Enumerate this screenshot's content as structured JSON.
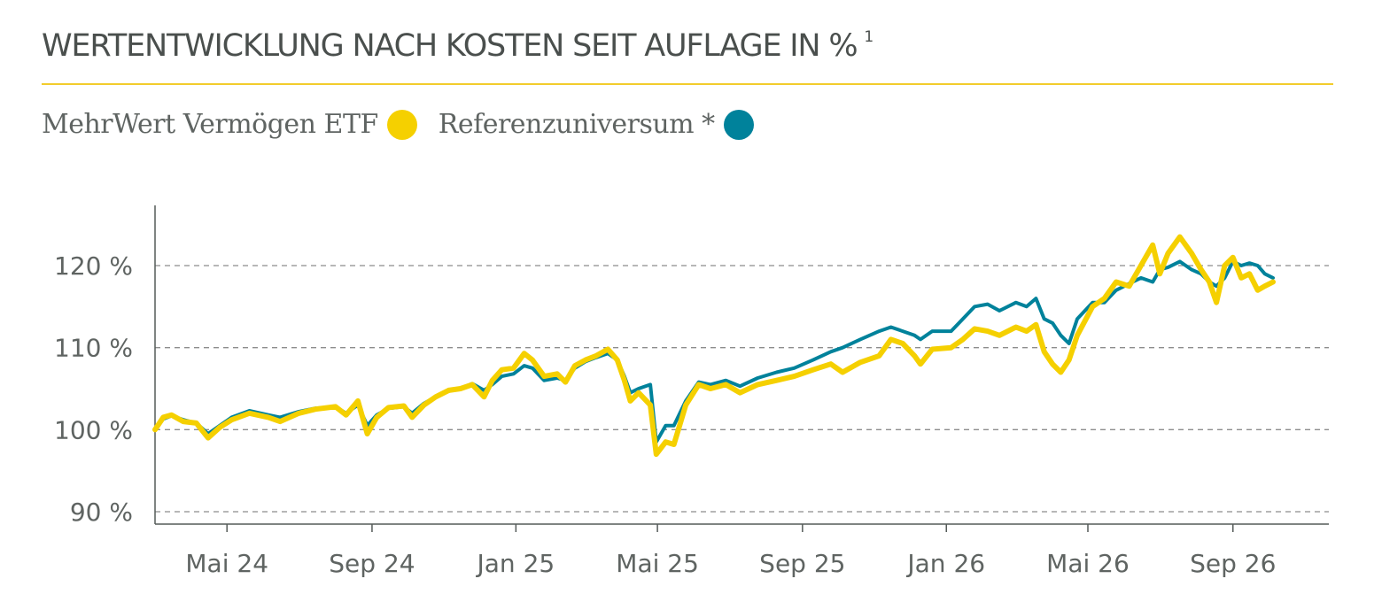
{
  "title": "WERTENTWICKLUNG NACH KOSTEN SEIT AUFLAGE IN %",
  "title_footnote": "1",
  "colors": {
    "etf": "#f5d000",
    "reference": "#00829b",
    "rule": "#f2cc2c",
    "grid": "#8c8c8c",
    "axis": "#555b59",
    "text": "#4a4f4d"
  },
  "legend": [
    {
      "label": "MehrWert Vermögen ETF",
      "color": "#f5d000"
    },
    {
      "label": "Referenzuniversum *",
      "color": "#00829b"
    }
  ],
  "chart_data": {
    "type": "line",
    "title": "WERTENTWICKLUNG NACH KOSTEN SEIT AUFLAGE IN %",
    "xlabel": "",
    "ylabel": "",
    "x_range": [
      "2024-03-01",
      "2026-11-15"
    ],
    "ylim": [
      89,
      128
    ],
    "y_ticks": [
      90,
      100,
      110,
      120
    ],
    "y_tick_labels": [
      "90 %",
      "100 %",
      "110 %",
      "120 %"
    ],
    "x_ticks": [
      "2024-05-01",
      "2024-09-01",
      "2025-01-01",
      "2025-05-01",
      "2025-09-01",
      "2026-01-01",
      "2026-05-01",
      "2026-09-01"
    ],
    "x_tick_labels": [
      "Mai 24",
      "Sep 24",
      "Jan 25",
      "Mai 25",
      "Sep 25",
      "Jan 26",
      "Mai 26",
      "Sep 26"
    ],
    "grid": "horizontal dashed",
    "legend_position": "top-left",
    "series": [
      {
        "name": "MehrWert Vermögen ETF",
        "color": "#f5d000",
        "points": [
          [
            "2024-03-01",
            100.0
          ],
          [
            "2024-03-08",
            101.5
          ],
          [
            "2024-03-15",
            101.8
          ],
          [
            "2024-03-25",
            101.0
          ],
          [
            "2024-04-05",
            100.8
          ],
          [
            "2024-04-15",
            99.0
          ],
          [
            "2024-04-25",
            100.3
          ],
          [
            "2024-05-05",
            101.2
          ],
          [
            "2024-05-20",
            102.0
          ],
          [
            "2024-06-05",
            101.5
          ],
          [
            "2024-06-15",
            101.0
          ],
          [
            "2024-07-01",
            102.0
          ],
          [
            "2024-07-15",
            102.5
          ],
          [
            "2024-08-01",
            102.8
          ],
          [
            "2024-08-10",
            101.8
          ],
          [
            "2024-08-20",
            103.5
          ],
          [
            "2024-08-28",
            99.5
          ],
          [
            "2024-09-05",
            101.5
          ],
          [
            "2024-09-15",
            102.7
          ],
          [
            "2024-09-28",
            102.9
          ],
          [
            "2024-10-05",
            101.5
          ],
          [
            "2024-10-15",
            103.0
          ],
          [
            "2024-10-25",
            104.0
          ],
          [
            "2024-11-05",
            104.8
          ],
          [
            "2024-11-15",
            105.0
          ],
          [
            "2024-11-25",
            105.5
          ],
          [
            "2024-12-05",
            104.0
          ],
          [
            "2024-12-12",
            106.0
          ],
          [
            "2024-12-20",
            107.3
          ],
          [
            "2024-12-30",
            107.5
          ],
          [
            "2025-01-08",
            109.3
          ],
          [
            "2025-01-15",
            108.5
          ],
          [
            "2025-01-25",
            106.5
          ],
          [
            "2025-02-05",
            106.8
          ],
          [
            "2025-02-12",
            105.8
          ],
          [
            "2025-02-20",
            107.8
          ],
          [
            "2025-03-01",
            108.5
          ],
          [
            "2025-03-10",
            109.0
          ],
          [
            "2025-03-20",
            109.8
          ],
          [
            "2025-03-28",
            108.5
          ],
          [
            "2025-04-03",
            106.0
          ],
          [
            "2025-04-08",
            103.5
          ],
          [
            "2025-04-15",
            104.5
          ],
          [
            "2025-04-25",
            103.0
          ],
          [
            "2025-04-30",
            97.0
          ],
          [
            "2025-05-08",
            98.5
          ],
          [
            "2025-05-15",
            98.2
          ],
          [
            "2025-05-25",
            103.0
          ],
          [
            "2025-06-05",
            105.5
          ],
          [
            "2025-06-15",
            105.0
          ],
          [
            "2025-06-28",
            105.5
          ],
          [
            "2025-07-10",
            104.5
          ],
          [
            "2025-07-25",
            105.5
          ],
          [
            "2025-08-10",
            106.0
          ],
          [
            "2025-08-25",
            106.5
          ],
          [
            "2025-09-10",
            107.3
          ],
          [
            "2025-09-25",
            108.0
          ],
          [
            "2025-10-05",
            107.0
          ],
          [
            "2025-10-20",
            108.2
          ],
          [
            "2025-11-05",
            109.0
          ],
          [
            "2025-11-15",
            111.0
          ],
          [
            "2025-11-25",
            110.5
          ],
          [
            "2025-12-05",
            109.0
          ],
          [
            "2025-12-10",
            108.0
          ],
          [
            "2025-12-20",
            109.8
          ],
          [
            "2026-01-05",
            110.0
          ],
          [
            "2026-01-15",
            111.0
          ],
          [
            "2026-01-25",
            112.3
          ],
          [
            "2026-02-05",
            112.0
          ],
          [
            "2026-02-15",
            111.5
          ],
          [
            "2026-03-01",
            112.5
          ],
          [
            "2026-03-10",
            112.0
          ],
          [
            "2026-03-18",
            112.8
          ],
          [
            "2026-03-25",
            109.5
          ],
          [
            "2026-04-01",
            108.0
          ],
          [
            "2026-04-08",
            107.0
          ],
          [
            "2026-04-15",
            108.5
          ],
          [
            "2026-04-22",
            111.5
          ],
          [
            "2026-05-05",
            115.0
          ],
          [
            "2026-05-15",
            116.0
          ],
          [
            "2026-05-25",
            118.0
          ],
          [
            "2026-06-05",
            117.5
          ],
          [
            "2026-06-15",
            120.0
          ],
          [
            "2026-06-25",
            122.5
          ],
          [
            "2026-07-01",
            119.0
          ],
          [
            "2026-07-08",
            121.5
          ],
          [
            "2026-07-18",
            123.5
          ],
          [
            "2026-07-28",
            121.5
          ],
          [
            "2026-08-05",
            119.5
          ],
          [
            "2026-08-12",
            118.0
          ],
          [
            "2026-08-18",
            115.5
          ],
          [
            "2026-08-25",
            120.0
          ],
          [
            "2026-09-01",
            121.0
          ],
          [
            "2026-09-08",
            118.5
          ],
          [
            "2026-09-15",
            119.0
          ],
          [
            "2026-09-22",
            117.0
          ],
          [
            "2026-09-28",
            117.5
          ],
          [
            "2026-10-05",
            118.0
          ]
        ]
      },
      {
        "name": "Referenzuniversum *",
        "color": "#00829b",
        "points": [
          [
            "2024-03-01",
            100.0
          ],
          [
            "2024-03-08",
            101.3
          ],
          [
            "2024-03-15",
            101.7
          ],
          [
            "2024-03-25",
            101.2
          ],
          [
            "2024-04-05",
            100.8
          ],
          [
            "2024-04-15",
            99.5
          ],
          [
            "2024-04-25",
            100.5
          ],
          [
            "2024-05-05",
            101.5
          ],
          [
            "2024-05-20",
            102.3
          ],
          [
            "2024-06-05",
            101.8
          ],
          [
            "2024-06-15",
            101.5
          ],
          [
            "2024-07-01",
            102.2
          ],
          [
            "2024-07-15",
            102.6
          ],
          [
            "2024-08-01",
            102.8
          ],
          [
            "2024-08-10",
            102.0
          ],
          [
            "2024-08-20",
            103.0
          ],
          [
            "2024-08-28",
            100.5
          ],
          [
            "2024-09-05",
            101.8
          ],
          [
            "2024-09-15",
            102.6
          ],
          [
            "2024-09-28",
            102.8
          ],
          [
            "2024-10-05",
            102.0
          ],
          [
            "2024-10-15",
            103.2
          ],
          [
            "2024-10-25",
            104.0
          ],
          [
            "2024-11-05",
            104.7
          ],
          [
            "2024-11-15",
            105.0
          ],
          [
            "2024-11-25",
            105.6
          ],
          [
            "2024-12-05",
            104.8
          ],
          [
            "2024-12-12",
            105.5
          ],
          [
            "2024-12-20",
            106.5
          ],
          [
            "2024-12-30",
            106.8
          ],
          [
            "2025-01-08",
            107.8
          ],
          [
            "2025-01-15",
            107.5
          ],
          [
            "2025-01-25",
            106.0
          ],
          [
            "2025-02-05",
            106.3
          ],
          [
            "2025-02-12",
            106.0
          ],
          [
            "2025-02-20",
            107.5
          ],
          [
            "2025-03-01",
            108.3
          ],
          [
            "2025-03-10",
            108.8
          ],
          [
            "2025-03-20",
            109.3
          ],
          [
            "2025-03-28",
            108.5
          ],
          [
            "2025-04-03",
            106.5
          ],
          [
            "2025-04-08",
            104.5
          ],
          [
            "2025-04-15",
            105.0
          ],
          [
            "2025-04-25",
            105.5
          ],
          [
            "2025-04-30",
            98.5
          ],
          [
            "2025-05-08",
            100.5
          ],
          [
            "2025-05-15",
            100.5
          ],
          [
            "2025-05-25",
            103.5
          ],
          [
            "2025-06-05",
            105.8
          ],
          [
            "2025-06-15",
            105.5
          ],
          [
            "2025-06-28",
            106.0
          ],
          [
            "2025-07-10",
            105.3
          ],
          [
            "2025-07-25",
            106.3
          ],
          [
            "2025-08-10",
            107.0
          ],
          [
            "2025-08-25",
            107.5
          ],
          [
            "2025-09-10",
            108.5
          ],
          [
            "2025-09-25",
            109.5
          ],
          [
            "2025-10-05",
            110.0
          ],
          [
            "2025-10-20",
            111.0
          ],
          [
            "2025-11-05",
            112.0
          ],
          [
            "2025-11-15",
            112.5
          ],
          [
            "2025-11-25",
            112.0
          ],
          [
            "2025-12-05",
            111.5
          ],
          [
            "2025-12-10",
            111.0
          ],
          [
            "2025-12-20",
            112.0
          ],
          [
            "2026-01-05",
            112.0
          ],
          [
            "2026-01-15",
            113.5
          ],
          [
            "2026-01-25",
            115.0
          ],
          [
            "2026-02-05",
            115.3
          ],
          [
            "2026-02-15",
            114.5
          ],
          [
            "2026-03-01",
            115.5
          ],
          [
            "2026-03-10",
            115.0
          ],
          [
            "2026-03-18",
            116.0
          ],
          [
            "2026-03-25",
            113.5
          ],
          [
            "2026-04-01",
            113.0
          ],
          [
            "2026-04-08",
            111.5
          ],
          [
            "2026-04-15",
            110.5
          ],
          [
            "2026-04-22",
            113.5
          ],
          [
            "2026-05-05",
            115.5
          ],
          [
            "2026-05-15",
            115.5
          ],
          [
            "2026-05-25",
            117.0
          ],
          [
            "2026-06-05",
            117.8
          ],
          [
            "2026-06-15",
            118.5
          ],
          [
            "2026-06-25",
            118.0
          ],
          [
            "2026-07-01",
            119.5
          ],
          [
            "2026-07-08",
            119.8
          ],
          [
            "2026-07-18",
            120.5
          ],
          [
            "2026-07-28",
            119.5
          ],
          [
            "2026-08-05",
            119.0
          ],
          [
            "2026-08-12",
            118.0
          ],
          [
            "2026-08-18",
            117.5
          ],
          [
            "2026-08-25",
            118.5
          ],
          [
            "2026-09-01",
            120.5
          ],
          [
            "2026-09-08",
            120.0
          ],
          [
            "2026-09-15",
            120.3
          ],
          [
            "2026-09-22",
            120.0
          ],
          [
            "2026-09-28",
            119.0
          ],
          [
            "2026-10-05",
            118.5
          ]
        ]
      }
    ]
  }
}
